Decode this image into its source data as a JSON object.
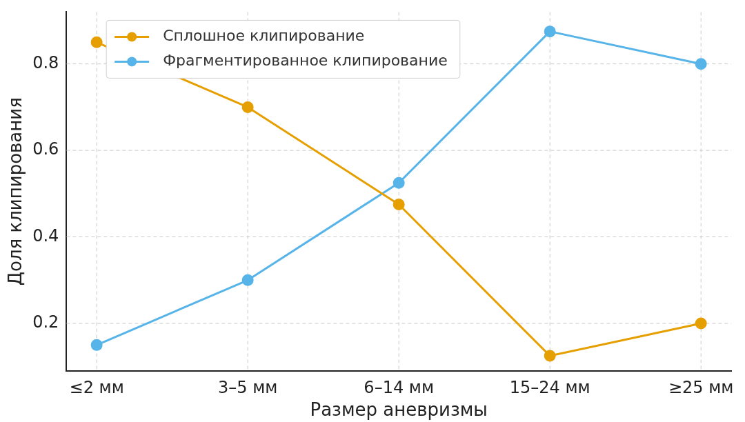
{
  "chart_data": {
    "type": "line",
    "xlabel": "Размер аневризмы",
    "ylabel": "Доля клипирования",
    "categories": [
      "≤2 мм",
      "3–5 мм",
      "6–14 мм",
      "15–24 мм",
      "≥25 мм"
    ],
    "series": [
      {
        "name": "Сплошное клипирование",
        "color": "#e69f00",
        "values": [
          0.85,
          0.7,
          0.475,
          0.125,
          0.2
        ]
      },
      {
        "name": "Фрагментированное клипирование",
        "color": "#56b4e9",
        "values": [
          0.15,
          0.3,
          0.525,
          0.875,
          0.8
        ]
      }
    ],
    "ylim": [
      0.09,
      0.92
    ],
    "yticks": [
      0.2,
      0.4,
      0.6,
      0.8
    ],
    "grid": true,
    "legend": "top left",
    "marker": "circle",
    "line_style": "solid"
  }
}
